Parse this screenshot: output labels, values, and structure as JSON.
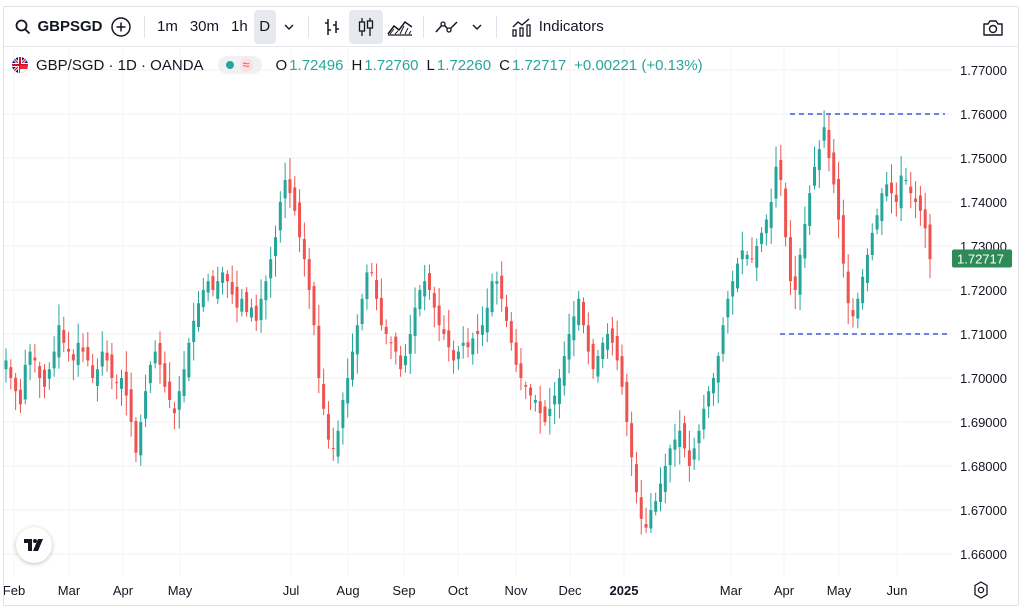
{
  "toolbar": {
    "symbol": "GBPSGD",
    "intervals": [
      "1m",
      "30m",
      "1h",
      "D"
    ],
    "active_interval": "D",
    "indicators_label": "Indicators"
  },
  "legend": {
    "title": "GBP/SGD · 1D · OANDA",
    "open_label": "O",
    "open": "1.72496",
    "high_label": "H",
    "high": "1.72760",
    "low_label": "L",
    "low": "1.72260",
    "close_label": "C",
    "close": "1.72717",
    "change": "+0.00221 (+0.13%)"
  },
  "price_tag": "1.72717",
  "colors": {
    "up": "#26a69a",
    "down": "#ef5350",
    "level_line": "#3b5bdb",
    "tag_bg": "#2e8b57"
  },
  "chart_data": {
    "type": "candlestick",
    "ylim": [
      1.655,
      1.775
    ],
    "y_ticks": [
      "1.77000",
      "1.76000",
      "1.75000",
      "1.74000",
      "1.73000",
      "1.72000",
      "1.71000",
      "1.70000",
      "1.69000",
      "1.68000",
      "1.67000",
      "1.66000"
    ],
    "y_tick_values": [
      1.77,
      1.76,
      1.75,
      1.74,
      1.73,
      1.72,
      1.71,
      1.7,
      1.69,
      1.68,
      1.67,
      1.66
    ],
    "x_ticks": [
      "Feb",
      "Mar",
      "Apr",
      "May",
      "Jul",
      "Aug",
      "Sep",
      "Oct",
      "Nov",
      "Dec",
      "2025",
      "Mar",
      "Apr",
      "May",
      "Jun"
    ],
    "x_tick_bold": "2025",
    "grid": true,
    "horizontal_levels": [
      1.76,
      1.71
    ],
    "last_price": 1.72717,
    "close_series": [
      1.704,
      1.7,
      1.697,
      1.694,
      1.703,
      1.706,
      1.704,
      1.7,
      1.698,
      1.702,
      1.706,
      1.712,
      1.708,
      1.706,
      1.704,
      1.708,
      1.706,
      1.704,
      1.7,
      1.702,
      1.706,
      1.704,
      1.7,
      1.699,
      1.7,
      1.696,
      1.69,
      1.683,
      1.69,
      1.697,
      1.703,
      1.706,
      1.703,
      1.698,
      1.695,
      1.692,
      1.697,
      1.702,
      1.708,
      1.713,
      1.717,
      1.72,
      1.722,
      1.72,
      1.722,
      1.724,
      1.722,
      1.719,
      1.716,
      1.718,
      1.715,
      1.716,
      1.713,
      1.718,
      1.722,
      1.727,
      1.732,
      1.74,
      1.745,
      1.742,
      1.738,
      1.732,
      1.727,
      1.72,
      1.712,
      1.7,
      1.693,
      1.686,
      1.684,
      1.688,
      1.695,
      1.7,
      1.706,
      1.712,
      1.718,
      1.724,
      1.724,
      1.718,
      1.712,
      1.71,
      1.708,
      1.706,
      1.702,
      1.705,
      1.71,
      1.716,
      1.72,
      1.722,
      1.72,
      1.716,
      1.712,
      1.71,
      1.707,
      1.704,
      1.706,
      1.708,
      1.707,
      1.709,
      1.71,
      1.712,
      1.716,
      1.722,
      1.722,
      1.718,
      1.713,
      1.708,
      1.703,
      1.7,
      1.698,
      1.696,
      1.695,
      1.692,
      1.69,
      1.693,
      1.696,
      1.7,
      1.705,
      1.71,
      1.714,
      1.718,
      1.712,
      1.706,
      1.702,
      1.705,
      1.708,
      1.71,
      1.708,
      1.704,
      1.698,
      1.69,
      1.682,
      1.674,
      1.668,
      1.666,
      1.67,
      1.672,
      1.676,
      1.68,
      1.684,
      1.686,
      1.688,
      1.684,
      1.68,
      1.684,
      1.688,
      1.693,
      1.697,
      1.7,
      1.705,
      1.712,
      1.718,
      1.722,
      1.726,
      1.729,
      1.728,
      1.727,
      1.73,
      1.733,
      1.736,
      1.74,
      1.748,
      1.745,
      1.732,
      1.722,
      1.72,
      1.728,
      1.735,
      1.742,
      1.748,
      1.752,
      1.757,
      1.75,
      1.744,
      1.736,
      1.726,
      1.717,
      1.714,
      1.718,
      1.723,
      1.728,
      1.733,
      1.737,
      1.742,
      1.744,
      1.742,
      1.74,
      1.746,
      1.745,
      1.742,
      1.74,
      1.738,
      1.734,
      1.727
    ]
  }
}
